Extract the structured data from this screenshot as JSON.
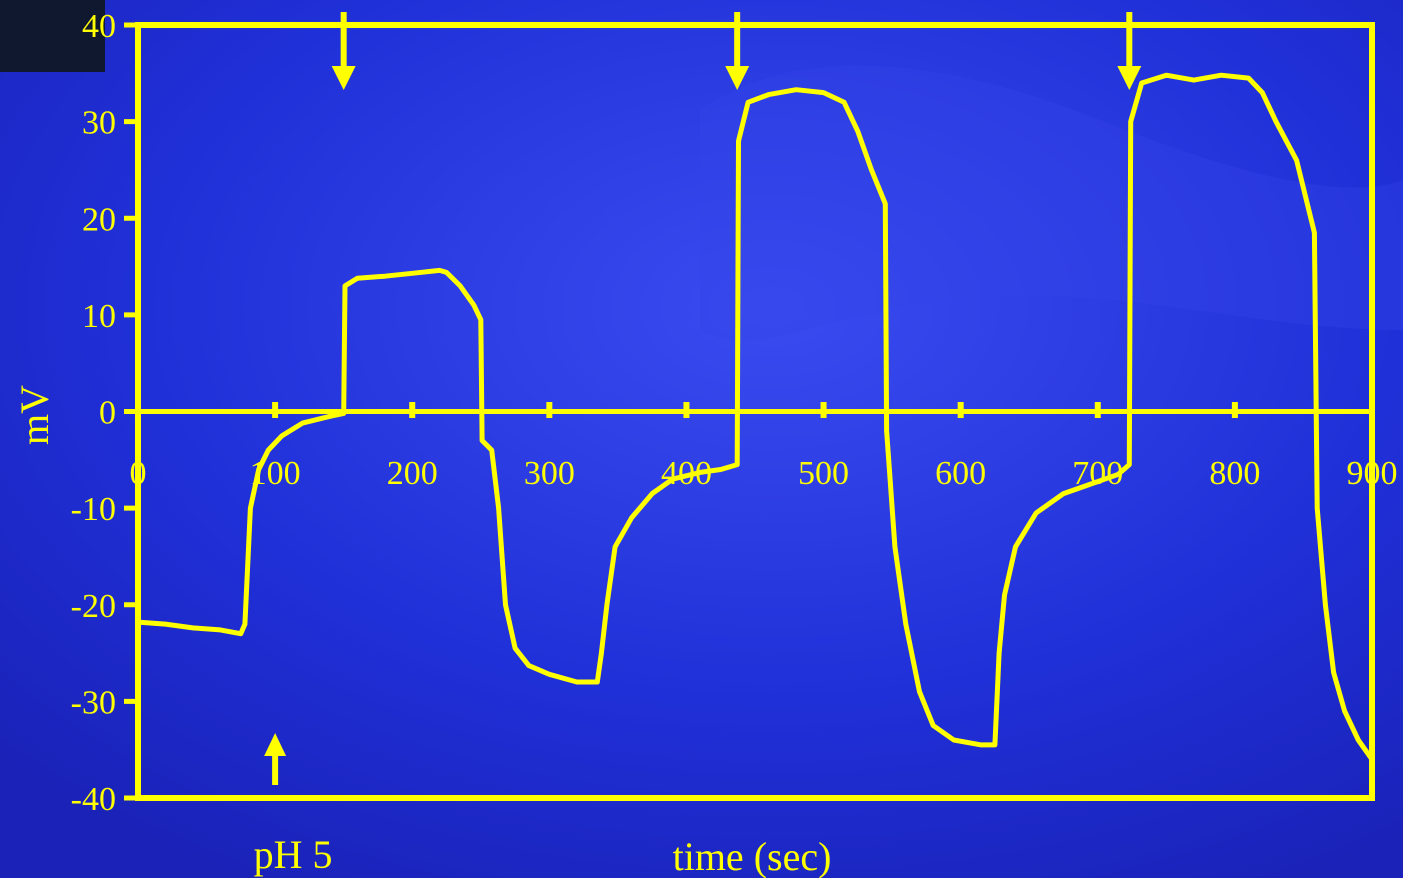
{
  "chart_data": {
    "type": "line",
    "xlabel": "time (sec)",
    "ylabel": "mV",
    "xlim": [
      0,
      900
    ],
    "ylim": [
      -40,
      40
    ],
    "x_ticks": [
      0,
      100,
      200,
      300,
      400,
      500,
      600,
      700,
      800,
      900
    ],
    "y_ticks": [
      40,
      30,
      20,
      10,
      0,
      -10,
      -20,
      -30,
      -40
    ],
    "grid": false,
    "line_color": "#ffff00",
    "background_color": "#1f2fd6",
    "series": [
      {
        "points": [
          [
            0,
            -21.8
          ],
          [
            20,
            -22
          ],
          [
            40,
            -22.4
          ],
          [
            60,
            -22.6
          ],
          [
            75,
            -23
          ],
          [
            78,
            -22
          ],
          [
            82,
            -10
          ],
          [
            88,
            -6
          ],
          [
            95,
            -4
          ],
          [
            105,
            -2.5
          ],
          [
            120,
            -1.2
          ],
          [
            140,
            -0.5
          ],
          [
            150,
            -0.2
          ],
          [
            151,
            13
          ],
          [
            160,
            13.8
          ],
          [
            180,
            14
          ],
          [
            200,
            14.3
          ],
          [
            220,
            14.6
          ],
          [
            225,
            14.4
          ],
          [
            235,
            13
          ],
          [
            245,
            11
          ],
          [
            250,
            9.5
          ],
          [
            251,
            -3
          ],
          [
            258,
            -4
          ],
          [
            263,
            -10
          ],
          [
            268,
            -20
          ],
          [
            275,
            -24.5
          ],
          [
            285,
            -26.3
          ],
          [
            300,
            -27.2
          ],
          [
            320,
            -28
          ],
          [
            335,
            -28
          ],
          [
            338,
            -25
          ],
          [
            342,
            -20
          ],
          [
            348,
            -14
          ],
          [
            360,
            -11
          ],
          [
            375,
            -8.5
          ],
          [
            390,
            -7
          ],
          [
            410,
            -6.3
          ],
          [
            425,
            -6
          ],
          [
            437,
            -5.5
          ],
          [
            438,
            28
          ],
          [
            445,
            32
          ],
          [
            460,
            32.8
          ],
          [
            480,
            33.3
          ],
          [
            500,
            33
          ],
          [
            515,
            32
          ],
          [
            525,
            29
          ],
          [
            535,
            25
          ],
          [
            545,
            21.5
          ],
          [
            546,
            -2
          ],
          [
            548,
            -6
          ],
          [
            552,
            -14
          ],
          [
            560,
            -22
          ],
          [
            570,
            -29
          ],
          [
            580,
            -32.5
          ],
          [
            595,
            -34
          ],
          [
            615,
            -34.5
          ],
          [
            625,
            -34.5
          ],
          [
            628,
            -25
          ],
          [
            632,
            -19
          ],
          [
            640,
            -14
          ],
          [
            655,
            -10.5
          ],
          [
            675,
            -8.5
          ],
          [
            695,
            -7.5
          ],
          [
            715,
            -6.5
          ],
          [
            723,
            -5.5
          ],
          [
            724,
            30
          ],
          [
            732,
            34
          ],
          [
            750,
            34.8
          ],
          [
            770,
            34.3
          ],
          [
            790,
            34.8
          ],
          [
            810,
            34.5
          ],
          [
            820,
            33
          ],
          [
            830,
            30
          ],
          [
            845,
            26
          ],
          [
            858,
            18.5
          ],
          [
            860,
            -10
          ],
          [
            866,
            -20
          ],
          [
            872,
            -27
          ],
          [
            880,
            -31
          ],
          [
            890,
            -34
          ],
          [
            900,
            -36
          ]
        ]
      }
    ],
    "annotations": [
      {
        "text": "pH 5",
        "x": 100,
        "kind": "up-arrow"
      },
      {
        "text": "",
        "x": 150,
        "kind": "down-arrow"
      },
      {
        "text": "",
        "x": 437,
        "kind": "down-arrow"
      },
      {
        "text": "",
        "x": 723,
        "kind": "down-arrow"
      }
    ]
  }
}
